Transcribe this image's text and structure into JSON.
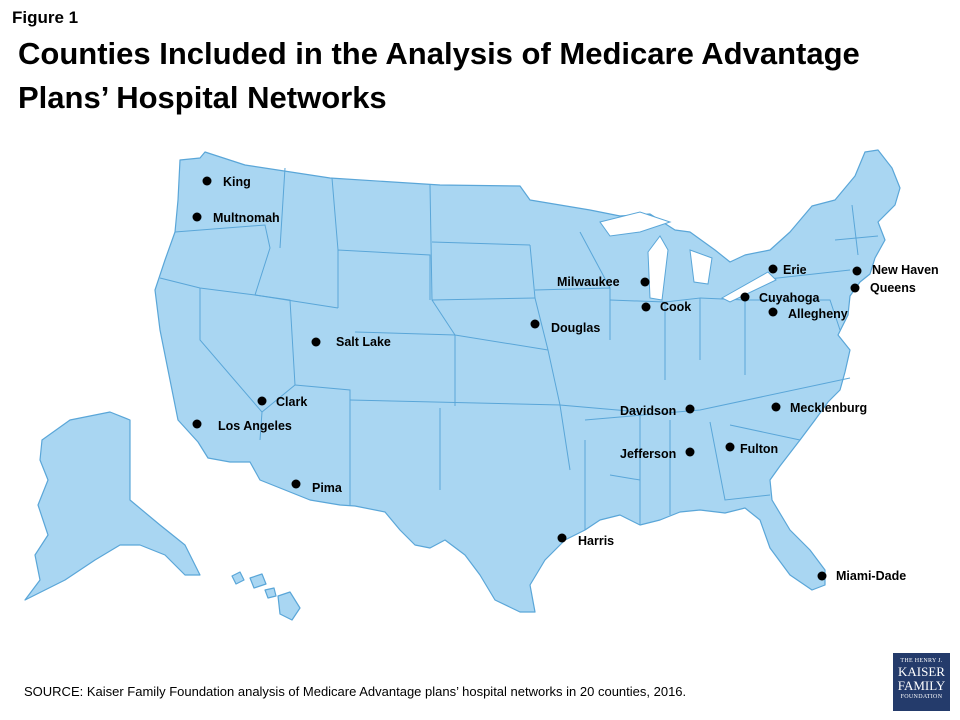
{
  "figure_label": "Figure 1",
  "title": "Counties Included in the Analysis of Medicare Advantage Plans’ Hospital Networks",
  "source": "SOURCE: Kaiser Family Foundation analysis of Medicare Advantage plans’ hospital networks in 20 counties, 2016.",
  "logo": {
    "line1": "THE HENRY J.",
    "line2": "KAISER",
    "line3": "FAMILY",
    "line4": "FOUNDATION"
  },
  "colors": {
    "land": "#a9d6f2",
    "border": "#5aa6d8",
    "marker": "#000000",
    "logo_bg": "#243b6b"
  },
  "counties": [
    {
      "name": "King"
    },
    {
      "name": "Multnomah"
    },
    {
      "name": "Salt Lake"
    },
    {
      "name": "Clark"
    },
    {
      "name": "Los Angeles"
    },
    {
      "name": "Pima"
    },
    {
      "name": "Douglas"
    },
    {
      "name": "Milwaukee"
    },
    {
      "name": "Cook"
    },
    {
      "name": "Erie"
    },
    {
      "name": "Cuyahoga"
    },
    {
      "name": "Allegheny"
    },
    {
      "name": "New Haven"
    },
    {
      "name": "Queens"
    },
    {
      "name": "Davidson"
    },
    {
      "name": "Mecklenburg"
    },
    {
      "name": "Jefferson"
    },
    {
      "name": "Fulton"
    },
    {
      "name": "Harris"
    },
    {
      "name": "Miami-Dade"
    }
  ]
}
